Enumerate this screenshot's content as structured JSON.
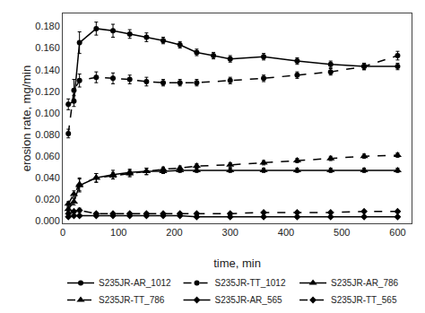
{
  "chart_data": {
    "type": "line",
    "xlabel": "time, min",
    "ylabel": "erosion rate, mg/min",
    "xlim": [
      0,
      625
    ],
    "ylim": [
      -0.002,
      0.192
    ],
    "xticks": [
      0,
      100,
      200,
      300,
      400,
      500,
      600
    ],
    "yticks": [
      {
        "value": 0,
        "label": "0.000"
      },
      {
        "value": 0.02,
        "label": "0.020"
      },
      {
        "value": 0.04,
        "label": "0.040"
      },
      {
        "value": 0.06,
        "label": "0.060"
      },
      {
        "value": 0.08,
        "label": "0.080"
      },
      {
        "value": 0.1,
        "label": "0.100"
      },
      {
        "value": 0.12,
        "label": "0.120"
      },
      {
        "value": 0.14,
        "label": "0.140"
      },
      {
        "value": 0.16,
        "label": "0.160"
      },
      {
        "value": 0.18,
        "label": "0.180"
      }
    ],
    "grid": false,
    "legend": "bottom",
    "color": "#000000",
    "series": [
      {
        "name": "S235JR-AR_1012",
        "marker": "circle",
        "line_style": "solid",
        "x": [
          10,
          20,
          30,
          60,
          90,
          120,
          150,
          180,
          210,
          240,
          270,
          300,
          360,
          420,
          480,
          540,
          600
        ],
        "values": [
          0.108,
          0.111,
          0.165,
          0.178,
          0.176,
          0.173,
          0.17,
          0.167,
          0.163,
          0.156,
          0.153,
          0.15,
          0.152,
          0.148,
          0.145,
          0.143,
          0.143
        ],
        "yerr": [
          0.005,
          0.005,
          0.01,
          0.006,
          0.006,
          0.004,
          0.004,
          0.003,
          0.003,
          0.003,
          0.003,
          0.003,
          0.003,
          0.003,
          0.003,
          0.003,
          0.003
        ]
      },
      {
        "name": "S235JR-TT_1012",
        "marker": "circle",
        "line_style": "dashed",
        "x": [
          10,
          20,
          30,
          60,
          90,
          120,
          150,
          180,
          210,
          240,
          300,
          360,
          420,
          480,
          540,
          600
        ],
        "values": [
          0.081,
          0.121,
          0.13,
          0.133,
          0.132,
          0.131,
          0.129,
          0.128,
          0.128,
          0.128,
          0.13,
          0.132,
          0.135,
          0.138,
          0.143,
          0.153
        ],
        "yerr": [
          0.004,
          0.01,
          0.006,
          0.005,
          0.005,
          0.004,
          0.004,
          0.003,
          0.003,
          0.003,
          0.003,
          0.003,
          0.003,
          0.003,
          0.003,
          0.004
        ]
      },
      {
        "name": "S235JR-AR_786",
        "marker": "triangle",
        "line_style": "solid",
        "x": [
          10,
          20,
          30,
          60,
          90,
          120,
          150,
          180,
          210,
          240,
          300,
          360,
          420,
          480,
          540,
          600
        ],
        "values": [
          0.011,
          0.018,
          0.033,
          0.04,
          0.043,
          0.045,
          0.046,
          0.046,
          0.047,
          0.047,
          0.047,
          0.047,
          0.047,
          0.047,
          0.047,
          0.047
        ],
        "yerr": [
          0.002,
          0.003,
          0.006,
          0.004,
          0.004,
          0.003,
          0.003,
          0.002,
          0.002,
          0.002,
          0.002,
          0.002,
          0.002,
          0.002,
          0.002,
          0.002
        ]
      },
      {
        "name": "S235JR-TT_786",
        "marker": "triangle",
        "line_style": "dashed",
        "x": [
          10,
          20,
          30,
          60,
          90,
          120,
          150,
          180,
          210,
          240,
          300,
          360,
          420,
          480,
          540,
          600
        ],
        "values": [
          0.016,
          0.025,
          0.034,
          0.04,
          0.042,
          0.044,
          0.046,
          0.048,
          0.049,
          0.051,
          0.052,
          0.054,
          0.056,
          0.058,
          0.06,
          0.061
        ],
        "yerr": [
          0.002,
          0.003,
          0.006,
          0.004,
          0.003,
          0.003,
          0.003,
          0.002,
          0.002,
          0.002,
          0.002,
          0.002,
          0.002,
          0.002,
          0.002,
          0.002
        ]
      },
      {
        "name": "S235JR-AR_565",
        "marker": "diamond",
        "line_style": "solid",
        "x": [
          10,
          20,
          30,
          60,
          90,
          120,
          150,
          180,
          210,
          240,
          300,
          360,
          420,
          480,
          540,
          600
        ],
        "values": [
          0.004,
          0.005,
          0.005,
          0.005,
          0.005,
          0.005,
          0.005,
          0.005,
          0.005,
          0.004,
          0.004,
          0.004,
          0.004,
          0.004,
          0.004,
          0.004
        ],
        "yerr": [
          0.001,
          0.001,
          0.001,
          0.001,
          0.001,
          0.001,
          0.001,
          0.001,
          0.001,
          0.001,
          0.001,
          0.001,
          0.001,
          0.001,
          0.001,
          0.001
        ]
      },
      {
        "name": "S235JR-TT_565",
        "marker": "diamond",
        "line_style": "dashed",
        "x": [
          10,
          20,
          30,
          60,
          90,
          120,
          150,
          180,
          210,
          240,
          300,
          360,
          420,
          480,
          540,
          600
        ],
        "values": [
          0.007,
          0.009,
          0.01,
          0.007,
          0.007,
          0.007,
          0.007,
          0.007,
          0.007,
          0.007,
          0.007,
          0.008,
          0.008,
          0.008,
          0.009,
          0.009
        ],
        "yerr": [
          0.001,
          0.001,
          0.002,
          0.001,
          0.001,
          0.001,
          0.001,
          0.001,
          0.001,
          0.001,
          0.001,
          0.001,
          0.001,
          0.001,
          0.001,
          0.001
        ]
      }
    ]
  }
}
